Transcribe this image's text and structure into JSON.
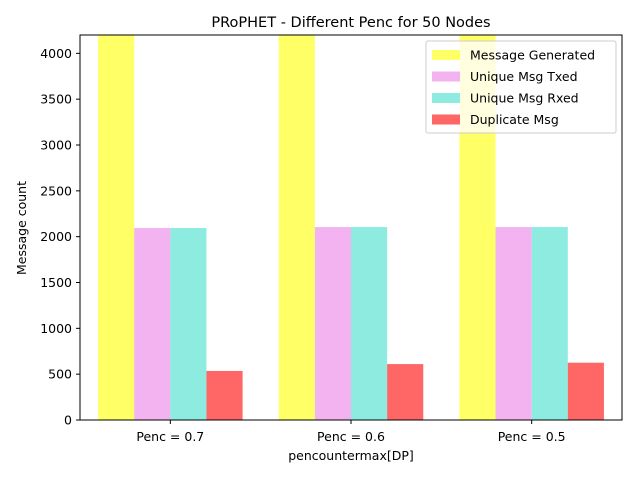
{
  "chart_data": {
    "type": "bar",
    "title": "PRoPHET - Different Penc for 50 Nodes",
    "xlabel": "pencountermax[DP]",
    "ylabel": "Message count",
    "ylim": [
      0,
      4200
    ],
    "yticks": [
      0,
      500,
      1000,
      1500,
      2000,
      2500,
      3000,
      3500,
      4000
    ],
    "categories": [
      "Penc = 0.7",
      "Penc = 0.6",
      "Penc = 0.5"
    ],
    "series": [
      {
        "name": "Message Generated",
        "color": "#ffff66",
        "values": [
          4250,
          4250,
          4250
        ]
      },
      {
        "name": "Unique Msg Txed",
        "color": "#f2b3f0",
        "values": [
          2095,
          2105,
          2105
        ]
      },
      {
        "name": "Unique Msg Rxed",
        "color": "#8eebe0",
        "values": [
          2095,
          2105,
          2105
        ]
      },
      {
        "name": "Duplicate Msg",
        "color": "#ff6666",
        "values": [
          535,
          610,
          625
        ]
      }
    ],
    "legend": "top-right",
    "grid": false
  }
}
